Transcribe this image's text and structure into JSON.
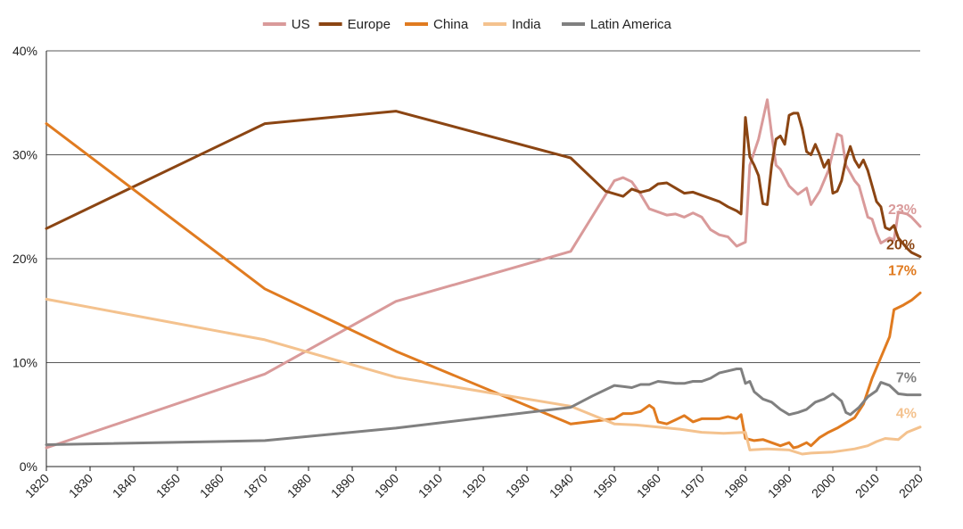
{
  "chart_data": {
    "type": "line",
    "title": "",
    "xlabel": "",
    "ylabel": "",
    "xlim": [
      1820,
      2020
    ],
    "ylim": [
      0,
      40
    ],
    "x_ticks": [
      "1820",
      "1830",
      "1840",
      "1850",
      "1860",
      "1870",
      "1880",
      "1890",
      "1900",
      "1910",
      "1920",
      "1930",
      "1940",
      "1950",
      "1960",
      "1970",
      "1980",
      "1990",
      "2000",
      "2010",
      "2020"
    ],
    "y_ticks": [
      {
        "value": 0,
        "label": "0%"
      },
      {
        "value": 10,
        "label": "10%"
      },
      {
        "value": 20,
        "label": "20%"
      },
      {
        "value": 30,
        "label": "30%"
      },
      {
        "value": 40,
        "label": "40%"
      }
    ],
    "grid": "horizontal",
    "legend_position": "top",
    "series": [
      {
        "name": "US",
        "color": "#d99a9a",
        "end_label": "23%",
        "points": [
          [
            1820,
            1.8
          ],
          [
            1870,
            8.9
          ],
          [
            1900,
            15.9
          ],
          [
            1940,
            20.7
          ],
          [
            1950,
            27.5
          ],
          [
            1952,
            27.8
          ],
          [
            1954,
            27.4
          ],
          [
            1956,
            26.2
          ],
          [
            1958,
            24.8
          ],
          [
            1960,
            24.5
          ],
          [
            1962,
            24.2
          ],
          [
            1964,
            24.3
          ],
          [
            1966,
            24.0
          ],
          [
            1968,
            24.4
          ],
          [
            1970,
            24.0
          ],
          [
            1972,
            22.8
          ],
          [
            1974,
            22.3
          ],
          [
            1976,
            22.1
          ],
          [
            1978,
            21.2
          ],
          [
            1980,
            21.6
          ],
          [
            1981,
            29.0
          ],
          [
            1983,
            31.5
          ],
          [
            1985,
            35.3
          ],
          [
            1986,
            32.0
          ],
          [
            1987,
            29.0
          ],
          [
            1988,
            28.6
          ],
          [
            1990,
            27.0
          ],
          [
            1992,
            26.2
          ],
          [
            1994,
            26.8
          ],
          [
            1995,
            25.2
          ],
          [
            1997,
            26.5
          ],
          [
            1999,
            28.5
          ],
          [
            2001,
            32.0
          ],
          [
            2002,
            31.8
          ],
          [
            2003,
            29.0
          ],
          [
            2005,
            27.5
          ],
          [
            2006,
            27.0
          ],
          [
            2008,
            24.0
          ],
          [
            2009,
            23.8
          ],
          [
            2010,
            22.5
          ],
          [
            2011,
            21.5
          ],
          [
            2013,
            22.0
          ],
          [
            2014,
            21.8
          ],
          [
            2015,
            24.5
          ],
          [
            2017,
            24.3
          ],
          [
            2018,
            24.0
          ],
          [
            2020,
            23.1
          ]
        ]
      },
      {
        "name": "Europe",
        "color": "#8b4513",
        "end_label": "20%",
        "points": [
          [
            1820,
            22.9
          ],
          [
            1870,
            33.0
          ],
          [
            1900,
            34.2
          ],
          [
            1940,
            29.7
          ],
          [
            1948,
            26.5
          ],
          [
            1952,
            26.0
          ],
          [
            1954,
            26.7
          ],
          [
            1956,
            26.4
          ],
          [
            1958,
            26.6
          ],
          [
            1960,
            27.2
          ],
          [
            1962,
            27.3
          ],
          [
            1964,
            26.8
          ],
          [
            1966,
            26.3
          ],
          [
            1968,
            26.4
          ],
          [
            1970,
            26.1
          ],
          [
            1972,
            25.8
          ],
          [
            1974,
            25.5
          ],
          [
            1976,
            25.0
          ],
          [
            1978,
            24.6
          ],
          [
            1979,
            24.3
          ],
          [
            1980,
            33.6
          ],
          [
            1981,
            29.8
          ],
          [
            1982,
            29.0
          ],
          [
            1983,
            28.0
          ],
          [
            1984,
            25.3
          ],
          [
            1985,
            25.2
          ],
          [
            1986,
            29.0
          ],
          [
            1987,
            31.5
          ],
          [
            1988,
            31.8
          ],
          [
            1989,
            31.0
          ],
          [
            1990,
            33.8
          ],
          [
            1991,
            34.0
          ],
          [
            1992,
            34.0
          ],
          [
            1993,
            32.5
          ],
          [
            1994,
            30.3
          ],
          [
            1995,
            30.0
          ],
          [
            1996,
            31.0
          ],
          [
            1997,
            30.0
          ],
          [
            1998,
            28.8
          ],
          [
            1999,
            29.5
          ],
          [
            2000,
            26.3
          ],
          [
            2001,
            26.5
          ],
          [
            2002,
            27.5
          ],
          [
            2003,
            29.5
          ],
          [
            2004,
            30.8
          ],
          [
            2005,
            29.5
          ],
          [
            2006,
            28.8
          ],
          [
            2007,
            29.5
          ],
          [
            2008,
            28.5
          ],
          [
            2009,
            27.0
          ],
          [
            2010,
            25.5
          ],
          [
            2011,
            25.0
          ],
          [
            2012,
            23.0
          ],
          [
            2013,
            22.8
          ],
          [
            2014,
            23.2
          ],
          [
            2015,
            22.0
          ],
          [
            2017,
            21.0
          ],
          [
            2018,
            20.6
          ],
          [
            2020,
            20.2
          ]
        ]
      },
      {
        "name": "China",
        "color": "#e07b20",
        "end_label": "17%",
        "points": [
          [
            1820,
            33.0
          ],
          [
            1870,
            17.1
          ],
          [
            1900,
            11.1
          ],
          [
            1940,
            4.1
          ],
          [
            1950,
            4.6
          ],
          [
            1952,
            5.1
          ],
          [
            1954,
            5.1
          ],
          [
            1956,
            5.3
          ],
          [
            1958,
            5.9
          ],
          [
            1959,
            5.6
          ],
          [
            1960,
            4.3
          ],
          [
            1962,
            4.1
          ],
          [
            1964,
            4.5
          ],
          [
            1966,
            4.9
          ],
          [
            1968,
            4.3
          ],
          [
            1970,
            4.6
          ],
          [
            1972,
            4.6
          ],
          [
            1974,
            4.6
          ],
          [
            1976,
            4.8
          ],
          [
            1978,
            4.6
          ],
          [
            1979,
            5.0
          ],
          [
            1980,
            2.7
          ],
          [
            1982,
            2.5
          ],
          [
            1984,
            2.6
          ],
          [
            1986,
            2.3
          ],
          [
            1988,
            2.0
          ],
          [
            1990,
            2.3
          ],
          [
            1991,
            1.8
          ],
          [
            1992,
            1.9
          ],
          [
            1994,
            2.3
          ],
          [
            1995,
            2.0
          ],
          [
            1997,
            2.8
          ],
          [
            1999,
            3.3
          ],
          [
            2001,
            3.7
          ],
          [
            2003,
            4.2
          ],
          [
            2005,
            4.7
          ],
          [
            2007,
            6.0
          ],
          [
            2009,
            8.5
          ],
          [
            2011,
            10.5
          ],
          [
            2013,
            12.5
          ],
          [
            2014,
            15.1
          ],
          [
            2016,
            15.5
          ],
          [
            2018,
            16.0
          ],
          [
            2020,
            16.7
          ]
        ]
      },
      {
        "name": "India",
        "color": "#f4c28e",
        "end_label": "4%",
        "points": [
          [
            1820,
            16.1
          ],
          [
            1870,
            12.2
          ],
          [
            1900,
            8.6
          ],
          [
            1940,
            5.8
          ],
          [
            1950,
            4.1
          ],
          [
            1955,
            4.0
          ],
          [
            1960,
            3.8
          ],
          [
            1965,
            3.6
          ],
          [
            1970,
            3.3
          ],
          [
            1975,
            3.2
          ],
          [
            1980,
            3.3
          ],
          [
            1981,
            1.6
          ],
          [
            1985,
            1.7
          ],
          [
            1990,
            1.6
          ],
          [
            1993,
            1.2
          ],
          [
            1995,
            1.3
          ],
          [
            2000,
            1.4
          ],
          [
            2005,
            1.7
          ],
          [
            2008,
            2.0
          ],
          [
            2010,
            2.4
          ],
          [
            2012,
            2.7
          ],
          [
            2015,
            2.6
          ],
          [
            2017,
            3.3
          ],
          [
            2020,
            3.8
          ]
        ]
      },
      {
        "name": "Latin America",
        "color": "#808080",
        "end_label": "7%",
        "points": [
          [
            1820,
            2.1
          ],
          [
            1870,
            2.5
          ],
          [
            1900,
            3.7
          ],
          [
            1940,
            5.7
          ],
          [
            1945,
            6.8
          ],
          [
            1950,
            7.8
          ],
          [
            1952,
            7.7
          ],
          [
            1954,
            7.6
          ],
          [
            1956,
            7.9
          ],
          [
            1958,
            7.9
          ],
          [
            1960,
            8.2
          ],
          [
            1962,
            8.1
          ],
          [
            1964,
            8.0
          ],
          [
            1966,
            8.0
          ],
          [
            1968,
            8.2
          ],
          [
            1970,
            8.2
          ],
          [
            1972,
            8.5
          ],
          [
            1974,
            9.0
          ],
          [
            1976,
            9.2
          ],
          [
            1978,
            9.4
          ],
          [
            1979,
            9.4
          ],
          [
            1980,
            8.0
          ],
          [
            1981,
            8.2
          ],
          [
            1982,
            7.2
          ],
          [
            1984,
            6.5
          ],
          [
            1986,
            6.2
          ],
          [
            1988,
            5.5
          ],
          [
            1990,
            5.0
          ],
          [
            1992,
            5.2
          ],
          [
            1994,
            5.5
          ],
          [
            1996,
            6.2
          ],
          [
            1998,
            6.5
          ],
          [
            2000,
            7.0
          ],
          [
            2002,
            6.3
          ],
          [
            2003,
            5.2
          ],
          [
            2004,
            5.0
          ],
          [
            2006,
            5.7
          ],
          [
            2008,
            6.7
          ],
          [
            2010,
            7.3
          ],
          [
            2011,
            8.1
          ],
          [
            2013,
            7.8
          ],
          [
            2015,
            7.0
          ],
          [
            2017,
            6.9
          ],
          [
            2020,
            6.9
          ]
        ]
      }
    ]
  }
}
